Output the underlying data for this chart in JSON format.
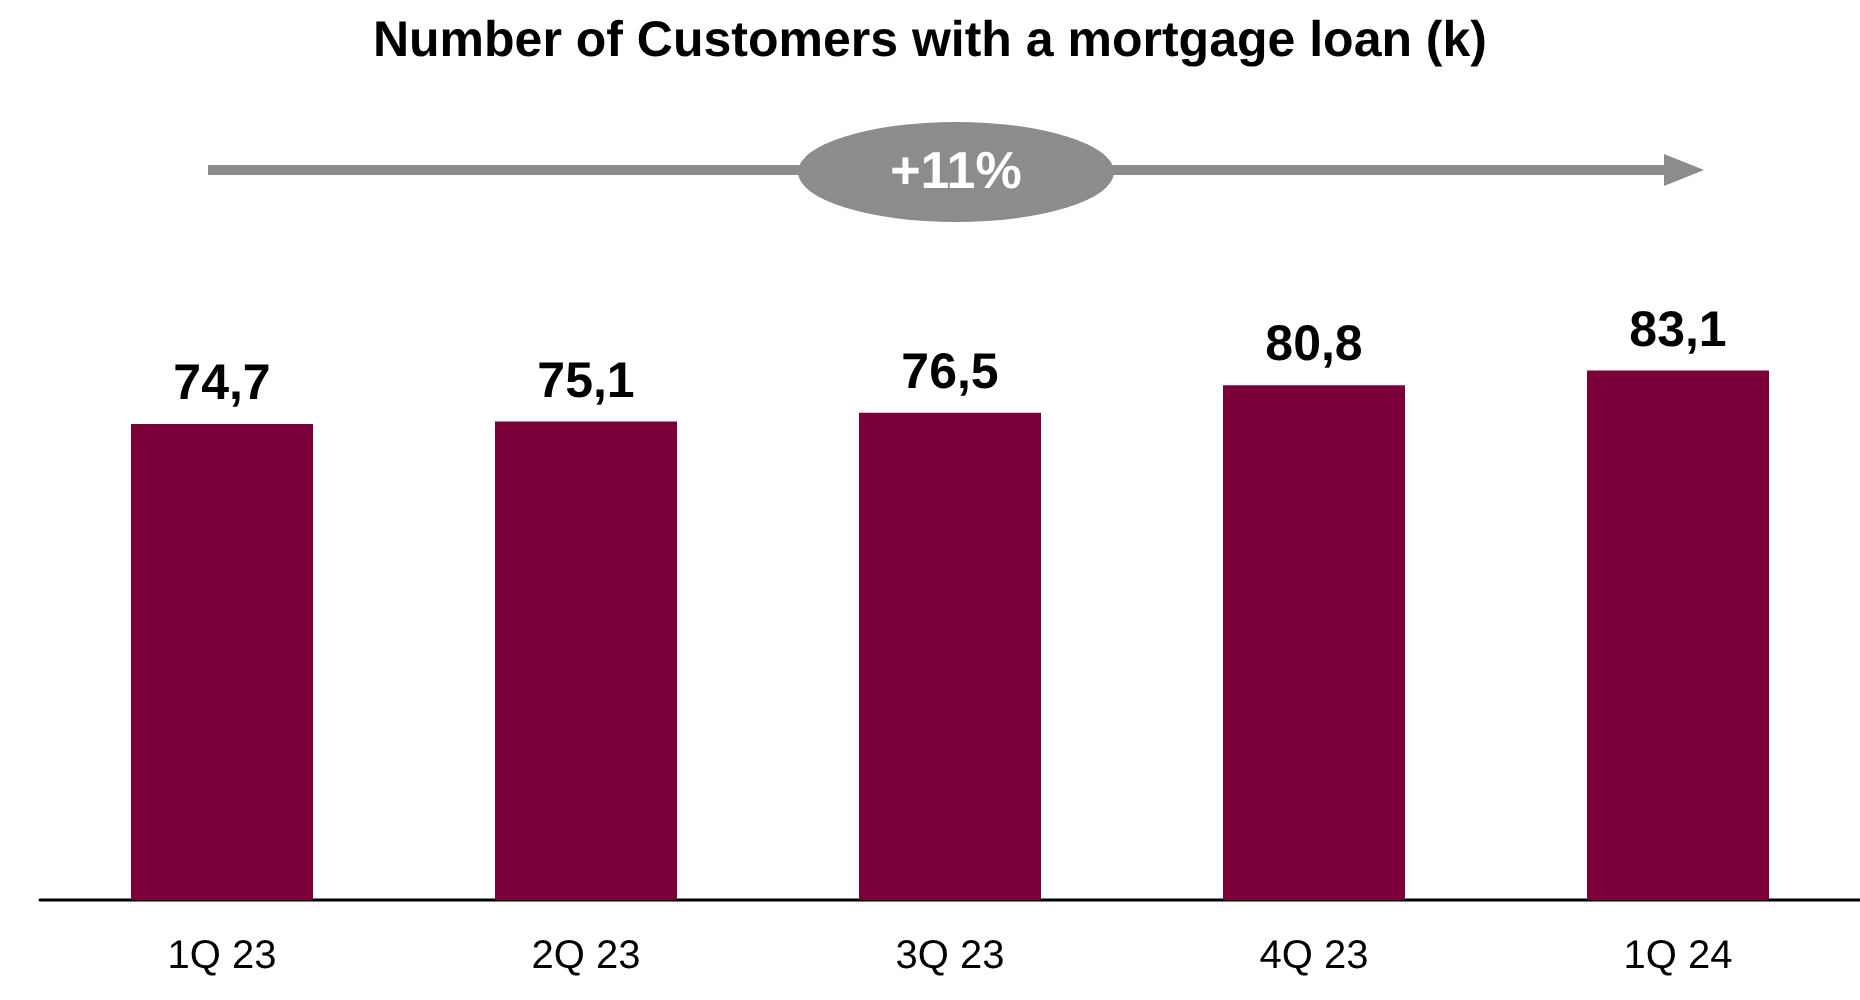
{
  "chart_data": {
    "type": "bar",
    "title": "Number of Customers with a mortgage loan (k)",
    "categories": [
      "1Q 23",
      "2Q 23",
      "3Q 23",
      "4Q 23",
      "1Q 24"
    ],
    "values": [
      74.7,
      75.1,
      76.5,
      80.8,
      83.1
    ],
    "value_labels": [
      "74,7",
      "75,1",
      "76,5",
      "80,8",
      "83,1"
    ],
    "color": "#7b0039",
    "annotations": [
      "+11%"
    ],
    "grid": false
  }
}
